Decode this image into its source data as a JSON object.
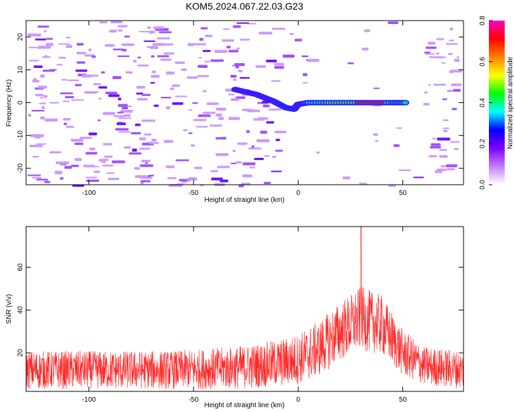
{
  "title": "KOM5.2024.067.22.03.G23",
  "chart_data": [
    {
      "type": "heatmap",
      "xlabel": "Height of straight line (km)",
      "ylabel": "Frequency (Hz)",
      "xlim": [
        -130,
        79
      ],
      "ylim": [
        -25,
        25
      ],
      "x_ticks": [
        -100,
        -50,
        0,
        50
      ],
      "y_ticks": [
        -20,
        -10,
        0,
        10,
        20
      ],
      "colorbar": {
        "label": "Normalized spectral amplitude",
        "range": [
          0,
          0.8
        ],
        "ticks": [
          "0.0",
          "0.2",
          "0.4",
          "0.6",
          "0.8"
        ],
        "colors": [
          "#ffffff",
          "#c080ff",
          "#8000ff",
          "#0000ff",
          "#00ffff",
          "#00ff00",
          "#ffff00",
          "#ff8000",
          "#ff0000",
          "#ff00c0"
        ]
      },
      "ridge": {
        "points": [
          [
            -30,
            4
          ],
          [
            -20,
            2.5
          ],
          [
            -12,
            0.5
          ],
          [
            -6,
            -1.5
          ],
          [
            -2,
            -2
          ],
          [
            0,
            -0.5
          ],
          [
            5,
            0
          ],
          [
            15,
            0
          ],
          [
            25,
            0
          ],
          [
            35,
            0
          ],
          [
            45,
            0
          ],
          [
            52,
            0
          ]
        ]
      }
    },
    {
      "type": "line",
      "xlabel": "Height of straight line (km)",
      "ylabel": "SNR (v/v)",
      "xlim": [
        -130,
        79
      ],
      "ylim": [
        2,
        79
      ],
      "x_ticks": [
        -100,
        -50,
        0,
        50
      ],
      "y_ticks": [
        20,
        40,
        60
      ],
      "series": [
        {
          "color": "#ff2a2a",
          "envelope": {
            "x": [
              -130,
              -100,
              -60,
              -30,
              -10,
              0,
              10,
              20,
              30,
              40,
              50,
              60,
              79
            ],
            "mean": [
              12,
              12,
              12,
              13,
              15,
              17,
              22,
              30,
              36,
              33,
              20,
              14,
              12
            ],
            "spread": [
              9,
              9,
              9,
              10,
              11,
              12,
              13,
              14,
              15,
              14,
              11,
              9,
              9
            ]
          },
          "peak": [
            30,
            79
          ]
        }
      ]
    }
  ]
}
